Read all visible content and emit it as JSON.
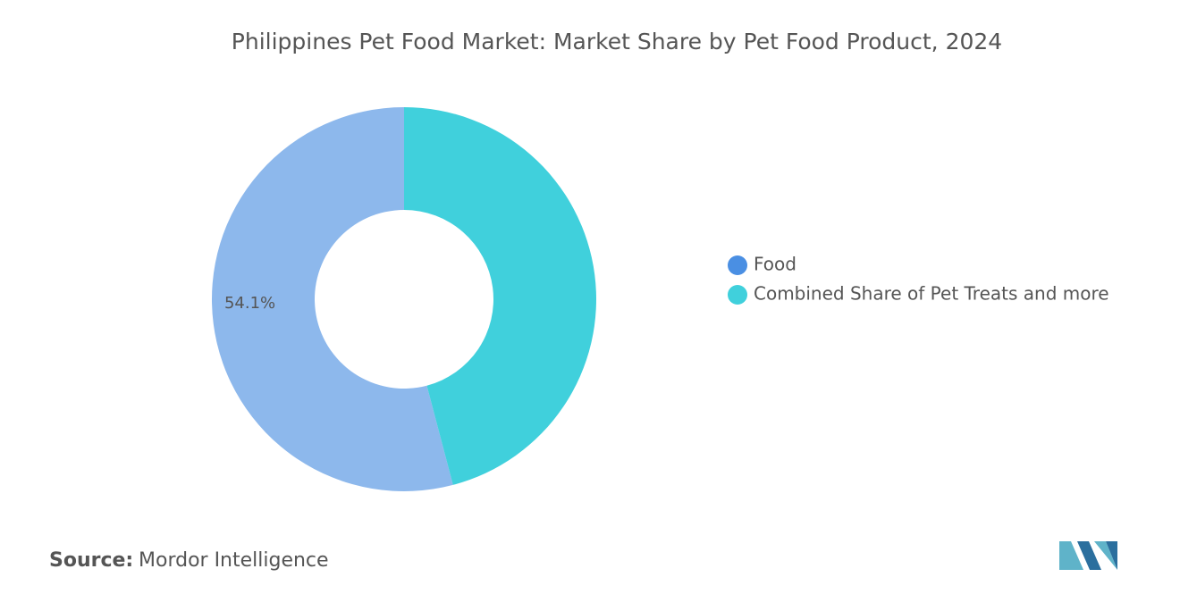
{
  "chart_data": {
    "type": "donut",
    "title": "Philippines Pet Food Market: Market Share by Pet Food Product, 2024",
    "categories": [
      "Food",
      "Combined Share of Pet Treats and more"
    ],
    "values": [
      54.1,
      45.9
    ],
    "value_labels": [
      "54.1%",
      null
    ],
    "colors": [
      "#8db8ec",
      "#40d0dc"
    ],
    "legend_colors": [
      "#4a8fe3",
      "#40d0dc"
    ],
    "legend": "right"
  },
  "source_label": "Source:",
  "source": "Mordor Intelligence"
}
